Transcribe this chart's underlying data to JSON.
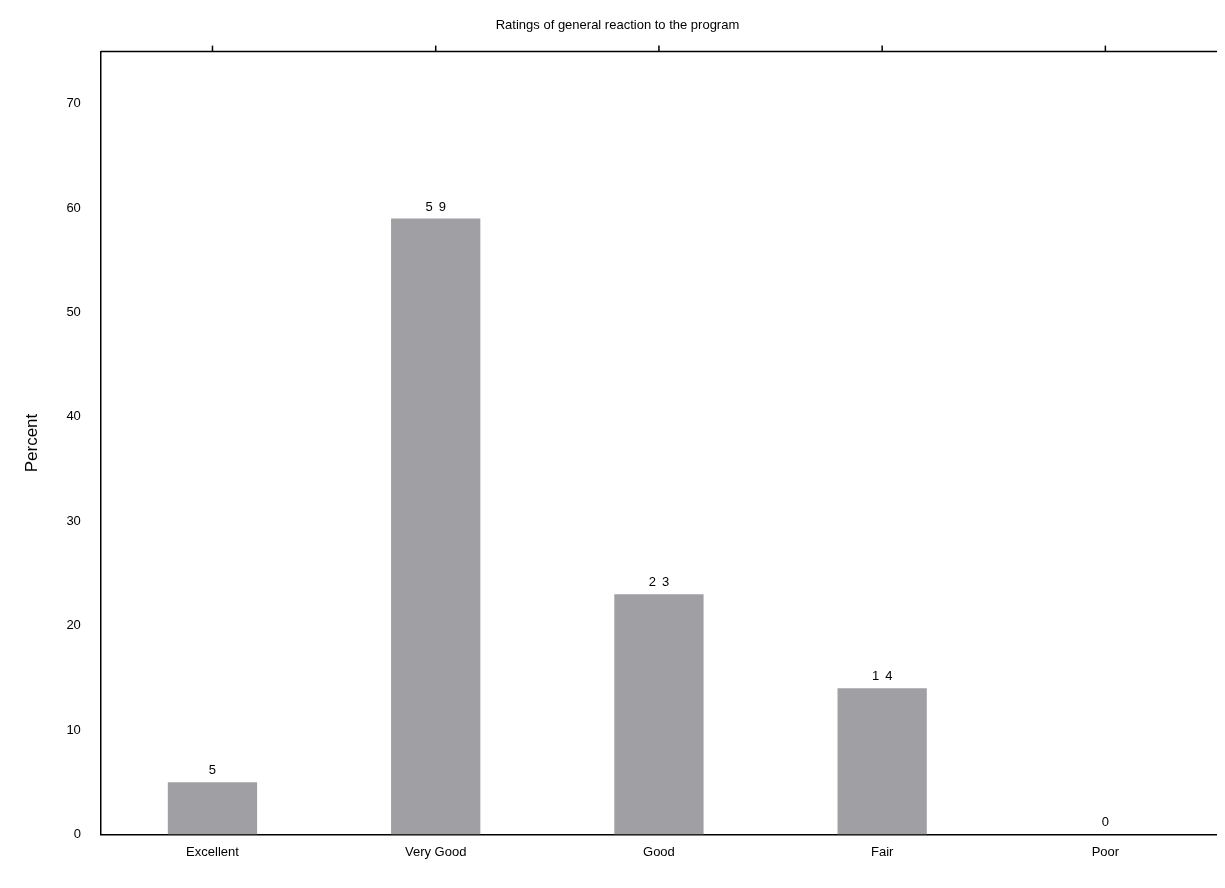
{
  "chart_data": {
    "type": "bar",
    "title": "Ratings of general reaction to the program",
    "ylabel": "Percent",
    "categories": [
      "Excellent",
      "Very Good",
      "Good",
      "Fair",
      "Poor"
    ],
    "values": [
      5,
      59,
      23,
      14,
      0
    ],
    "color": "#a09fa4",
    "ylim": [
      0,
      75
    ],
    "yticks": [
      0,
      10,
      20,
      30,
      40,
      50,
      60,
      70
    ],
    "grid": false,
    "legend": false,
    "data_labels": true
  }
}
